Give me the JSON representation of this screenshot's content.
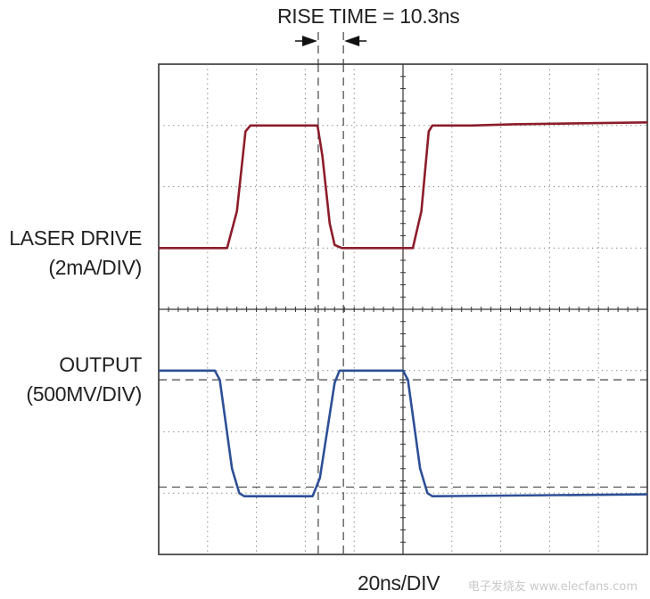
{
  "chart_data": {
    "type": "line",
    "title": "RISE TIME = 10.3ns",
    "xlabel": "20ns/DIV",
    "grid": true,
    "divisions": {
      "x": 10,
      "y": 8
    },
    "x_units": "ns",
    "x_range": [
      0,
      200
    ],
    "series": [
      {
        "name": "LASER DRIVE",
        "scale": "2mA/DIV",
        "color": "#8c1c2a",
        "y_range_div": [
          4,
          8
        ],
        "points": [
          [
            0,
            5
          ],
          [
            28,
            5
          ],
          [
            32,
            5.6
          ],
          [
            35.5,
            6.9
          ],
          [
            37.5,
            7.0
          ],
          [
            63,
            7.0
          ],
          [
            65,
            7.0
          ],
          [
            67,
            6.5
          ],
          [
            70,
            5.4
          ],
          [
            72,
            5.05
          ],
          [
            75,
            5.0
          ],
          [
            104,
            5.0
          ],
          [
            107.5,
            5.6
          ],
          [
            110.5,
            6.9
          ],
          [
            112,
            7.0
          ],
          [
            128,
            7.0
          ],
          [
            145,
            7.02
          ],
          [
            200,
            7.05
          ]
        ]
      },
      {
        "name": "OUTPUT",
        "scale": "500MV/DIV",
        "color": "#2d4f96",
        "y_range_div": [
          0,
          4
        ],
        "points": [
          [
            0,
            3.0
          ],
          [
            23,
            3.0
          ],
          [
            25,
            2.85
          ],
          [
            30,
            1.4
          ],
          [
            33,
            1.0
          ],
          [
            35,
            0.95
          ],
          [
            63,
            0.95
          ],
          [
            66,
            1.25
          ],
          [
            72,
            2.8
          ],
          [
            74,
            3.0
          ],
          [
            100,
            3.0
          ],
          [
            102,
            2.85
          ],
          [
            107,
            1.4
          ],
          [
            110,
            1.0
          ],
          [
            112,
            0.95
          ],
          [
            200,
            0.98
          ]
        ]
      }
    ],
    "cursors": {
      "vertical_ns": [
        65.3,
        75.6
      ],
      "horizontal_div": [
        2.85,
        1.1
      ]
    }
  },
  "watermark": "电子发烧友 www.elecfans.com"
}
